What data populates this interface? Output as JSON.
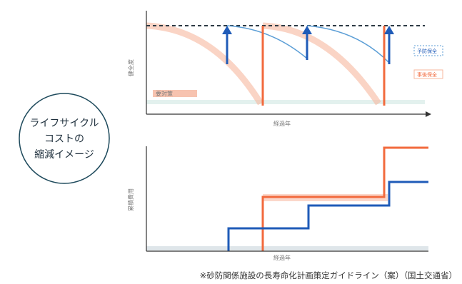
{
  "concept_circle": {
    "line1": "ライフサイクル",
    "line2": "コストの",
    "line3": "縮減イメージ"
  },
  "top_chart": {
    "y_label": "健全度",
    "x_label": "経過年",
    "legend_blue": "予防保全",
    "legend_orange": "事後保全",
    "inner_label": "要対策"
  },
  "bottom_chart": {
    "y_label": "累積費用",
    "x_label": "経過年"
  },
  "caption": "※砂防関係施設の長寿命化計画策定ガイドライン（案）（国土交通省）",
  "colors": {
    "blue": "#1f5bb8",
    "blue_light": "#5b9ed6",
    "orange": "#f26a3d",
    "orange_light": "#f7b79e",
    "circle_stroke": "#1e4a5c",
    "axis": "#333333",
    "threshold": "#9fd0c8"
  }
}
